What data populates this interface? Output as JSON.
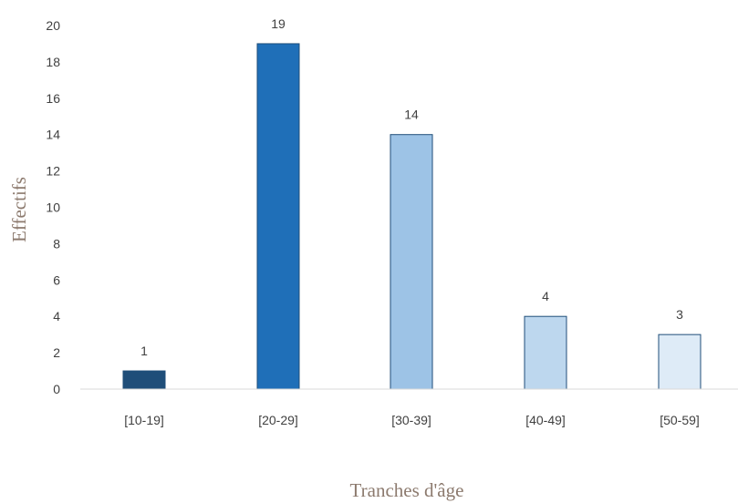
{
  "chart_data": {
    "type": "bar",
    "title": "",
    "xlabel": "Tranches d'âge",
    "ylabel": "Effectifs",
    "categories": [
      "[10-19]",
      "[20-29]",
      "[30-39]",
      "[40-49]",
      "[50-59]"
    ],
    "values": [
      1,
      19,
      14,
      4,
      3
    ],
    "data_labels": [
      "1",
      "19",
      "14",
      "4",
      "3"
    ],
    "ylim": [
      0,
      20
    ],
    "yticks": [
      0,
      2,
      4,
      6,
      8,
      10,
      12,
      14,
      16,
      18,
      20
    ],
    "grid": false,
    "legend": "none",
    "bar_colors": [
      "#1f4e79",
      "#1f6fb8",
      "#9dc3e6",
      "#bdd7ee",
      "#deebf7"
    ],
    "bar_edge_color": "#1f4e79"
  }
}
